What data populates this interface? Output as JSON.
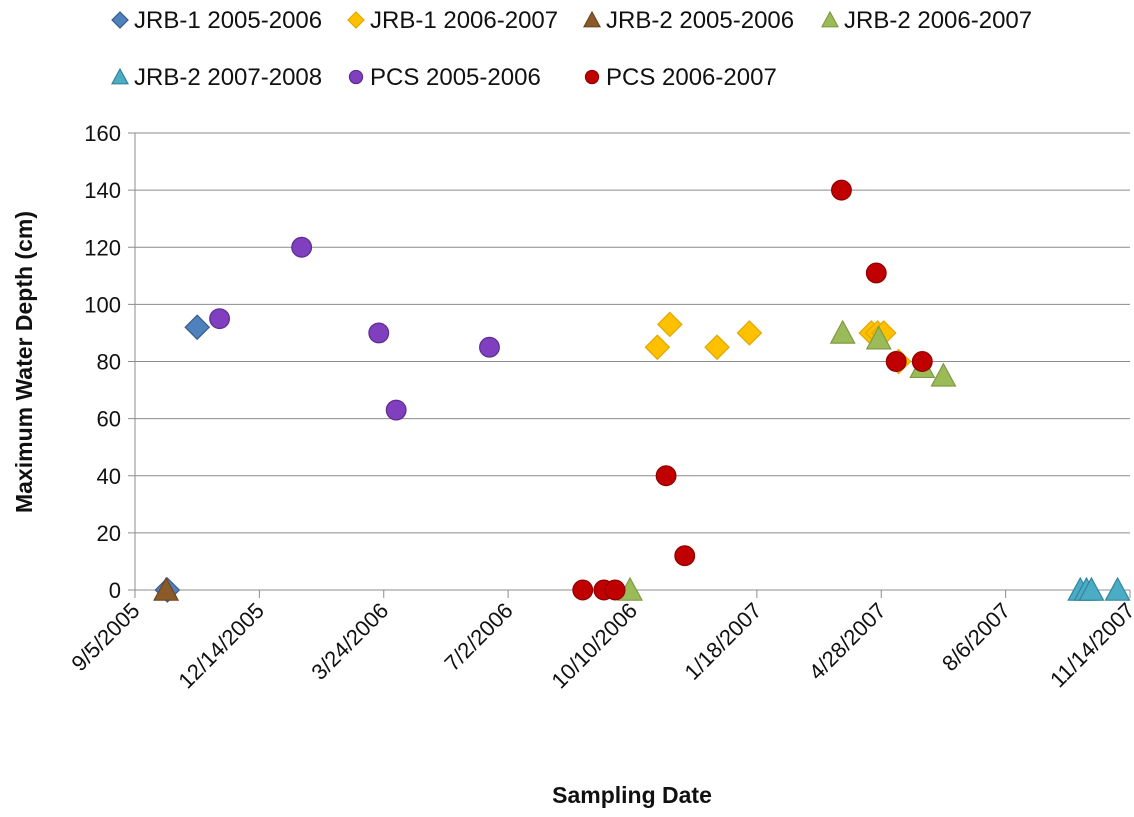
{
  "chart_data": {
    "type": "scatter",
    "title": "",
    "xlabel": "Sampling Date",
    "ylabel": "Maximum Water Depth (cm)",
    "x_type": "date",
    "xlim": [
      "2005-09-05",
      "2007-11-14"
    ],
    "x_ticks": [
      "2005-09-05",
      "2005-12-14",
      "2006-03-24",
      "2006-07-02",
      "2006-10-10",
      "2007-01-18",
      "2007-04-28",
      "2007-08-06",
      "2007-11-14"
    ],
    "x_tick_labels": [
      "9/5/2005",
      "12/14/2005",
      "3/24/2006",
      "7/2/2006",
      "10/10/2006",
      "1/18/2007",
      "4/28/2007",
      "8/6/2007",
      "11/14/2007"
    ],
    "ylim": [
      0,
      160
    ],
    "y_ticks": [
      0,
      20,
      40,
      60,
      80,
      100,
      120,
      140,
      160
    ],
    "grid": "horizontal",
    "legend_placement": "top",
    "series": [
      {
        "name": "JRB-1 2005-2006",
        "marker": "diamond",
        "color": "#4F81BD",
        "stroke": "#385D8A",
        "points": [
          {
            "x": "2005-10-01",
            "y": 0
          },
          {
            "x": "2005-10-25",
            "y": 92
          }
        ]
      },
      {
        "name": "JRB-1 2006-2007",
        "marker": "diamond",
        "color": "#FFC000",
        "stroke": "#E0A800",
        "points": [
          {
            "x": "2006-10-30",
            "y": 85
          },
          {
            "x": "2006-11-09",
            "y": 93
          },
          {
            "x": "2006-12-17",
            "y": 85
          },
          {
            "x": "2007-01-12",
            "y": 90
          },
          {
            "x": "2007-04-20",
            "y": 90
          },
          {
            "x": "2007-04-25",
            "y": 90
          },
          {
            "x": "2007-04-30",
            "y": 90
          },
          {
            "x": "2007-05-12",
            "y": 80
          }
        ]
      },
      {
        "name": "JRB-2 2005-2006",
        "marker": "triangle",
        "color": "#8B5A2B",
        "stroke": "#6E4520",
        "points": [
          {
            "x": "2005-09-30",
            "y": 0
          }
        ]
      },
      {
        "name": "JRB-2 2006-2007",
        "marker": "triangle",
        "color": "#9BBB59",
        "stroke": "#7F9A45",
        "points": [
          {
            "x": "2006-10-08",
            "y": 0
          },
          {
            "x": "2007-03-28",
            "y": 90
          },
          {
            "x": "2007-04-26",
            "y": 88
          },
          {
            "x": "2007-05-31",
            "y": 78
          },
          {
            "x": "2007-06-17",
            "y": 75
          }
        ]
      },
      {
        "name": "JRB-2 2007-2008",
        "marker": "triangle",
        "color": "#4BACC6",
        "stroke": "#31859C",
        "points": [
          {
            "x": "2007-10-05",
            "y": 0
          },
          {
            "x": "2007-10-10",
            "y": 0
          },
          {
            "x": "2007-10-14",
            "y": 0
          },
          {
            "x": "2007-11-04",
            "y": 0
          }
        ]
      },
      {
        "name": "PCS 2005-2006",
        "marker": "circle",
        "color": "#7F3FBF",
        "stroke": "#5E2C8F",
        "points": [
          {
            "x": "2005-11-12",
            "y": 95
          },
          {
            "x": "2006-01-17",
            "y": 120
          },
          {
            "x": "2006-03-20",
            "y": 90
          },
          {
            "x": "2006-04-03",
            "y": 63
          },
          {
            "x": "2006-06-17",
            "y": 85
          }
        ]
      },
      {
        "name": "PCS 2006-2007",
        "marker": "circle",
        "color": "#C00000",
        "stroke": "#8F0000",
        "points": [
          {
            "x": "2006-08-31",
            "y": 0
          },
          {
            "x": "2006-09-17",
            "y": 0
          },
          {
            "x": "2006-09-26",
            "y": 0
          },
          {
            "x": "2006-11-06",
            "y": 40
          },
          {
            "x": "2006-11-21",
            "y": 12
          },
          {
            "x": "2007-03-27",
            "y": 140
          },
          {
            "x": "2007-04-24",
            "y": 111
          },
          {
            "x": "2007-05-10",
            "y": 80
          },
          {
            "x": "2007-05-31",
            "y": 80
          }
        ]
      }
    ]
  }
}
